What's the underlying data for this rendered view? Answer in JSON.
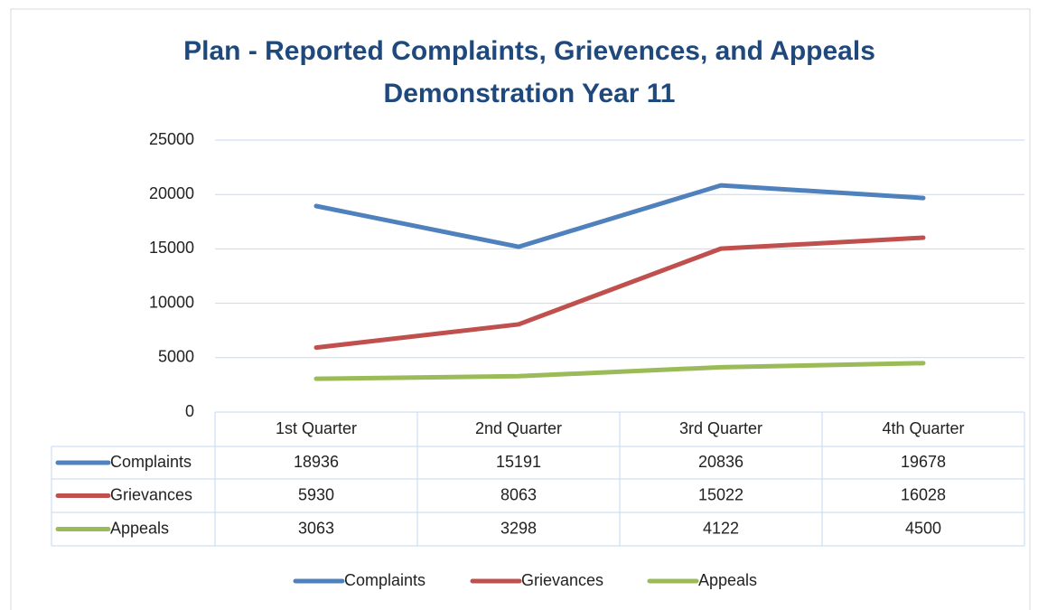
{
  "chart_data": {
    "type": "line",
    "title": "Plan - Reported Complaints, Grievences, and Appeals",
    "subtitle": "Demonstration Year 11",
    "categories": [
      "1st Quarter",
      "2nd Quarter",
      "3rd Quarter",
      "4th Quarter"
    ],
    "series": [
      {
        "name": "Complaints",
        "color": "#4f81bd",
        "values": [
          18936,
          15191,
          20836,
          19678
        ]
      },
      {
        "name": "Grievances",
        "color": "#c0504d",
        "values": [
          5930,
          8063,
          15022,
          16028
        ]
      },
      {
        "name": "Appeals",
        "color": "#9bbb59",
        "values": [
          3063,
          3298,
          4122,
          4500
        ]
      }
    ],
    "ylim": [
      0,
      25000
    ],
    "yticks": [
      0,
      5000,
      10000,
      15000,
      20000,
      25000
    ],
    "grid": true,
    "legend": "bottom",
    "data_table": true
  }
}
